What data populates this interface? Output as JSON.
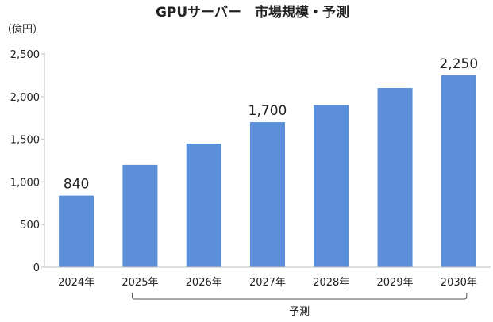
{
  "chart_data": {
    "type": "bar",
    "title": "GPUサーバー　市場規模・予測",
    "unit_label": "（億円）",
    "categories": [
      "2024年",
      "2025年",
      "2026年",
      "2027年",
      "2028年",
      "2029年",
      "2030年"
    ],
    "values": [
      840,
      1200,
      1450,
      1700,
      1900,
      2100,
      2250
    ],
    "data_labels": [
      {
        "index": 0,
        "text": "840"
      },
      {
        "index": 3,
        "text": "1,700"
      },
      {
        "index": 6,
        "text": "2,250"
      }
    ],
    "y_ticks": [
      "0",
      "500",
      "1,000",
      "1,500",
      "2,000",
      "2,500"
    ],
    "ylim": [
      0,
      2500
    ],
    "grid": false,
    "forecast": {
      "label": "予測",
      "from_index": 1,
      "to_index": 6
    },
    "colors": {
      "bar": "#5B8FD9",
      "axis": "#bfbfbf",
      "text": "#222222"
    }
  }
}
